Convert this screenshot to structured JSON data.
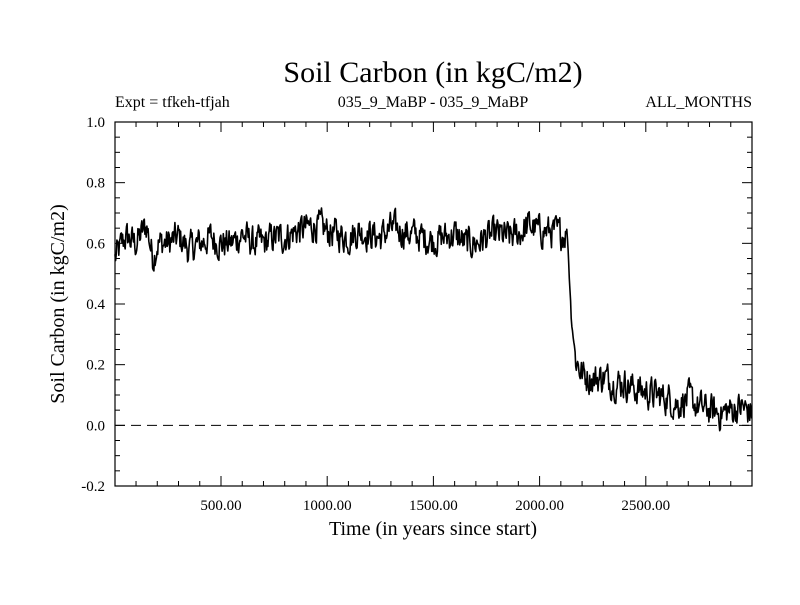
{
  "chart_data": {
    "type": "line",
    "title": "Soil Carbon (in kgC/m2)",
    "subtitle_left": "Expt = tfkeh-tfjah",
    "subtitle_center": "035_9_MaBP - 035_9_MaBP",
    "subtitle_right": "ALL_MONTHS",
    "xlabel": "Time (in years since start)",
    "ylabel": "Soil Carbon (in kgC/m2)",
    "xlim": [
      1,
      3000
    ],
    "ylim": [
      -0.2,
      1.0
    ],
    "x_ticks": [
      500,
      1000,
      1500,
      2000,
      2500
    ],
    "x_tick_labels": [
      "500.00",
      "1000.00",
      "1500.00",
      "2000.00",
      "2500.00"
    ],
    "y_ticks": [
      -0.2,
      0.0,
      0.2,
      0.4,
      0.6,
      0.8,
      1.0
    ],
    "y_tick_labels": [
      "-0.2",
      "0.0",
      "0.2",
      "0.4",
      "0.6",
      "0.8",
      "1.0"
    ],
    "reference_line": {
      "y": 0.0,
      "style": "dashed"
    },
    "grid": false,
    "line_color": "#000000",
    "series": [
      {
        "x": [
          1,
          50,
          100,
          150,
          180,
          200,
          250,
          300,
          350,
          400,
          450,
          500,
          550,
          600,
          650,
          700,
          750,
          800,
          850,
          900,
          950,
          1000,
          1050,
          1100,
          1150,
          1200,
          1250,
          1300,
          1350,
          1400,
          1450,
          1500,
          1550,
          1600,
          1650,
          1700,
          1750,
          1800,
          1850,
          1900,
          1950,
          2000,
          2050,
          2100,
          2130,
          2150,
          2170,
          2200,
          2250,
          2300,
          2350,
          2400,
          2450,
          2500,
          2550,
          2600,
          2650,
          2700,
          2750,
          2800,
          2850,
          2900,
          2950,
          3000
        ],
        "y": [
          0.55,
          0.62,
          0.6,
          0.66,
          0.55,
          0.6,
          0.6,
          0.62,
          0.58,
          0.6,
          0.62,
          0.6,
          0.6,
          0.63,
          0.6,
          0.6,
          0.62,
          0.62,
          0.64,
          0.65,
          0.66,
          0.64,
          0.63,
          0.62,
          0.64,
          0.63,
          0.62,
          0.65,
          0.64,
          0.63,
          0.62,
          0.61,
          0.62,
          0.63,
          0.6,
          0.6,
          0.62,
          0.63,
          0.62,
          0.63,
          0.66,
          0.64,
          0.64,
          0.63,
          0.64,
          0.35,
          0.22,
          0.17,
          0.15,
          0.16,
          0.14,
          0.14,
          0.12,
          0.11,
          0.1,
          0.09,
          0.07,
          0.09,
          0.06,
          0.05,
          0.04,
          0.05,
          0.06,
          0.04
        ]
      }
    ]
  }
}
